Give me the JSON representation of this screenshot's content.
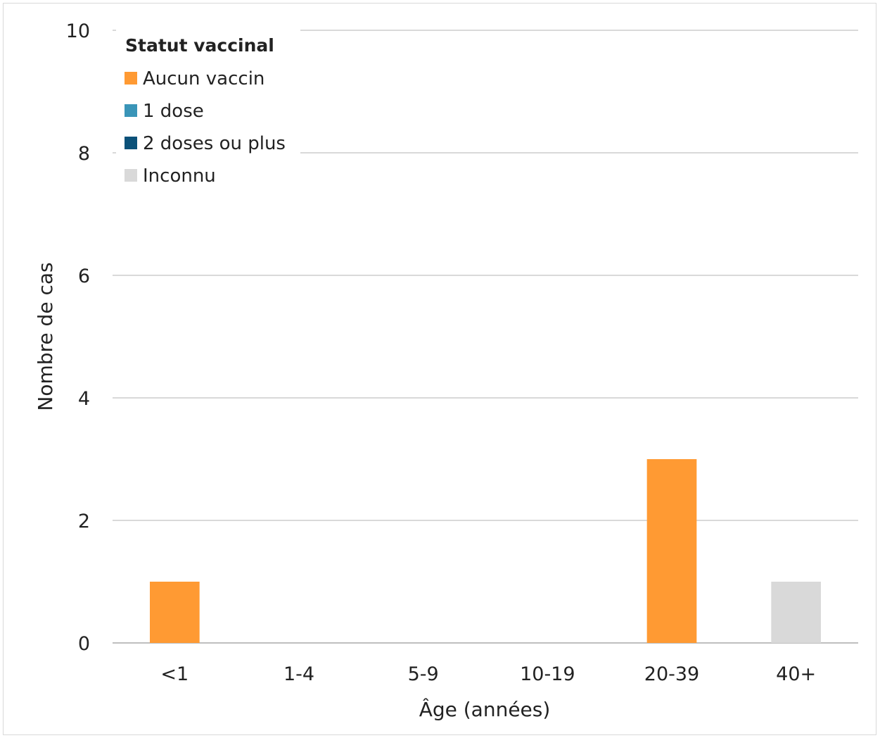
{
  "chart_data": {
    "type": "bar",
    "stacked": true,
    "categories": [
      "<1",
      "1-4",
      "5-9",
      "10-19",
      "20-39",
      "40+"
    ],
    "series": [
      {
        "name": "Aucun vaccin",
        "color": "#ff9a33",
        "values": [
          1,
          0,
          0,
          0,
          3,
          0
        ]
      },
      {
        "name": "1 dose",
        "color": "#3a95b8",
        "values": [
          0,
          0,
          0,
          0,
          0,
          0
        ]
      },
      {
        "name": "2 doses ou plus",
        "color": "#0b5179",
        "values": [
          0,
          0,
          0,
          0,
          0,
          0
        ]
      },
      {
        "name": "Inconnu",
        "color": "#d9d9d9",
        "values": [
          0,
          0,
          0,
          0,
          0,
          1
        ]
      }
    ],
    "xlabel": "Âge (années)",
    "ylabel": "Nombre de cas",
    "ylim": [
      0,
      10
    ],
    "yticks": [
      0,
      2,
      4,
      6,
      8,
      10
    ],
    "grid": true,
    "legend": {
      "title": "Statut vaccinal",
      "position": "top-left"
    }
  }
}
